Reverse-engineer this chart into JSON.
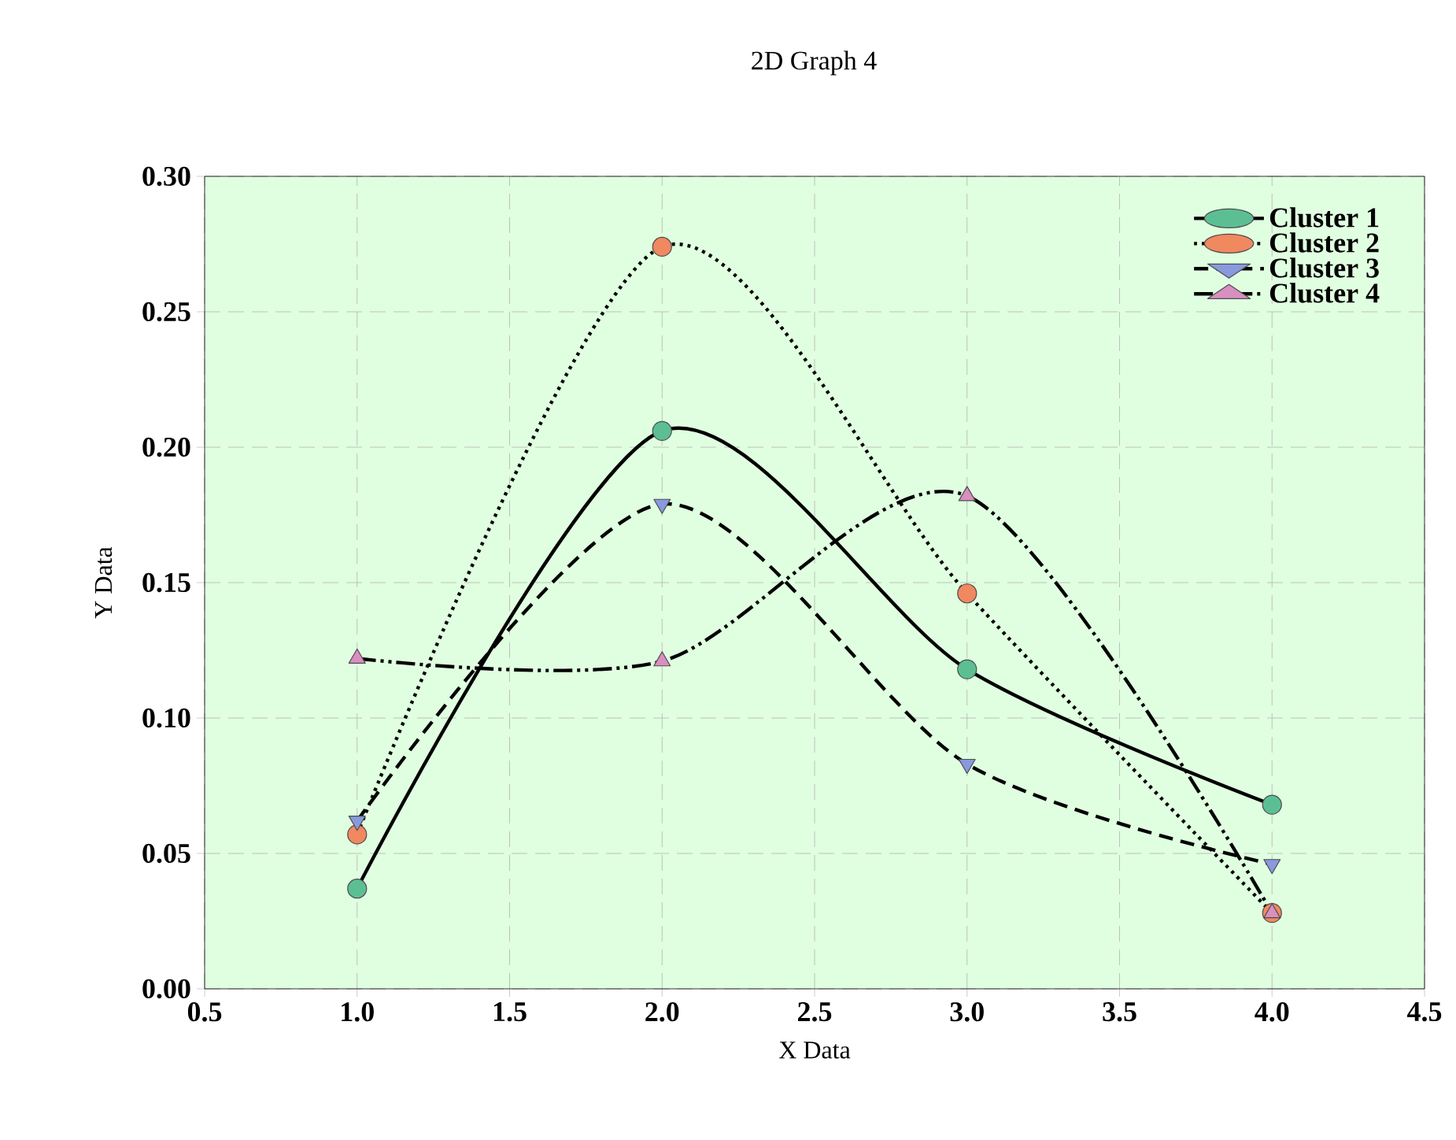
{
  "chart_data": {
    "type": "line",
    "title": "2D Graph 4",
    "xlabel": "X Data",
    "ylabel": "Y Data",
    "xlim": [
      0.5,
      4.5
    ],
    "xticks": [
      {
        "value": 0.5,
        "label": "0.5"
      },
      {
        "value": 1,
        "label": "1.0"
      },
      {
        "value": 1.5,
        "label": "1.5"
      },
      {
        "value": 2,
        "label": "2.0"
      },
      {
        "value": 2.5,
        "label": "2.5"
      },
      {
        "value": 3,
        "label": "3.0"
      },
      {
        "value": 3.5,
        "label": "3.5"
      },
      {
        "value": 4,
        "label": "4.0"
      },
      {
        "value": 4.5,
        "label": "4.5"
      }
    ],
    "ylim": [
      0,
      0.3
    ],
    "yticks": [
      {
        "value": 0,
        "label": "0.00"
      },
      {
        "value": 0.05,
        "label": "0.05"
      },
      {
        "value": 0.1,
        "label": "0.10"
      },
      {
        "value": 0.15,
        "label": "0.15"
      },
      {
        "value": 0.2,
        "label": "0.20"
      },
      {
        "value": 0.25,
        "label": "0.25"
      },
      {
        "value": 0.3,
        "label": "0.30"
      }
    ],
    "x": [
      1,
      2,
      3,
      4
    ],
    "series": [
      {
        "name": "Cluster 1",
        "color": "#5cbf94",
        "marker": "circle",
        "line_style": "solid",
        "values": [
          0.037,
          0.206,
          0.118,
          0.068
        ]
      },
      {
        "name": "Cluster 2",
        "color": "#f08860",
        "marker": "circle",
        "line_style": "dotted",
        "values": [
          0.057,
          0.274,
          0.146,
          0.028
        ]
      },
      {
        "name": "Cluster 3",
        "color": "#8899dd",
        "marker": "triangle-down",
        "line_style": "dashed",
        "values": [
          0.062,
          0.179,
          0.083,
          0.046
        ]
      },
      {
        "name": "Cluster 4",
        "color": "#d98fc0",
        "marker": "triangle",
        "line_style": "dashdotdotted",
        "values": [
          0.122,
          0.121,
          0.182,
          0.028
        ]
      }
    ],
    "grid": true,
    "legend": "top right"
  }
}
